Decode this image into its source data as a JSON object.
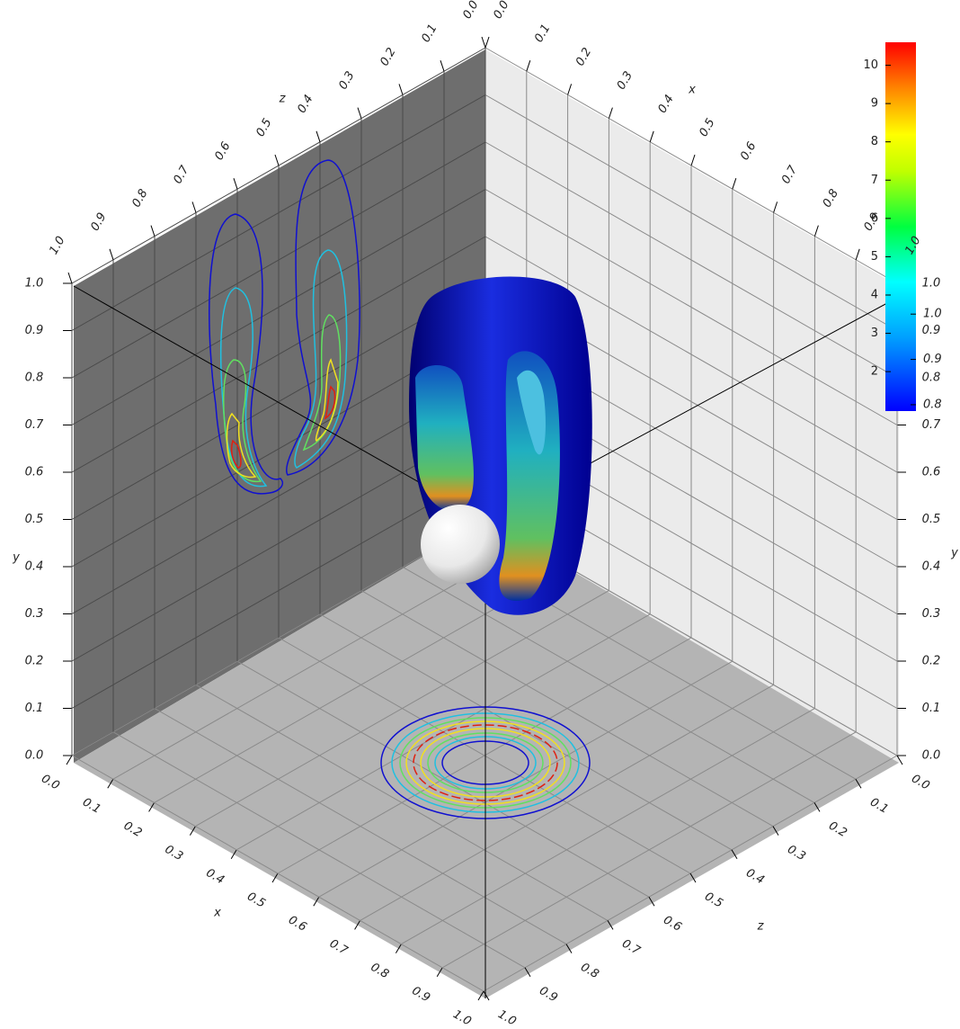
{
  "chart_data": {
    "type": "surface3d",
    "axis_labels": {
      "x": "x",
      "y": "y",
      "z": "z"
    },
    "xlim": [
      0,
      1
    ],
    "ylim": [
      0,
      1
    ],
    "zlim": [
      0,
      1
    ],
    "xticks": [
      {
        "value": 0,
        "label": "0.0"
      },
      0.1,
      0.2,
      0.3,
      0.4,
      0.5,
      0.6,
      0.7,
      0.8,
      0.9,
      {
        "value": 1,
        "label": "1.0"
      }
    ],
    "yticks": [
      {
        "value": 0,
        "label": "0.0"
      },
      0.1,
      0.2,
      0.3,
      0.4,
      0.5,
      0.6,
      0.7,
      0.8,
      0.9,
      {
        "value": 1,
        "label": "1.0"
      }
    ],
    "zticks": [
      {
        "value": 0,
        "label": "0.0"
      },
      0.1,
      0.2,
      0.3,
      0.4,
      0.5,
      0.6,
      0.7,
      0.8,
      0.9,
      {
        "value": 1,
        "label": "1.0"
      }
    ],
    "colorbar": {
      "lim": [
        0.97,
        10.6
      ],
      "ticks": [
        2,
        3,
        4,
        5,
        6,
        7,
        8,
        9,
        10
      ]
    },
    "colorbar2": {
      "lim": [
        0.786,
        1.6
      ],
      "ticks": [
        0.8,
        0.9,
        {
          "value": 1,
          "label": "1.0"
        }
      ]
    },
    "grid": true
  }
}
